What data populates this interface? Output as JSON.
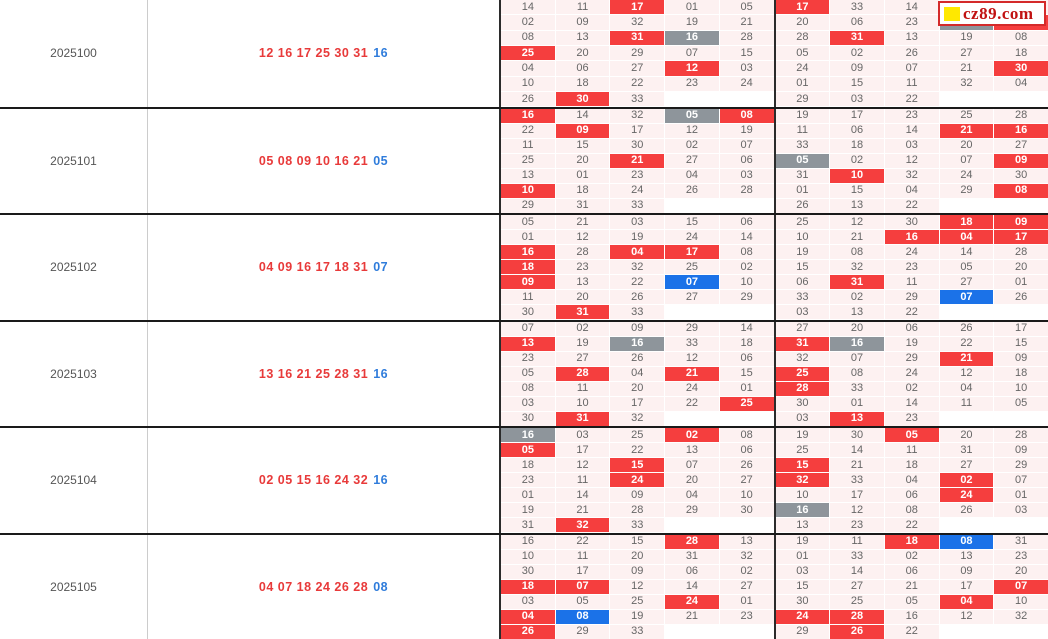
{
  "site": {
    "logo_text": "cz89.com",
    "logo_square_color": "#ffe800",
    "logo_text_color": "#c11212"
  },
  "colors": {
    "cell_bg": "#fdf1f1",
    "highlight_red": "#f53e3e",
    "highlight_gray": "#8e959b",
    "highlight_blue": "#1b72e8",
    "red_ball_text": "#e83a3a",
    "blue_ball_text": "#2f7cdb"
  },
  "legend": {
    "cell_format": "value:R = red highlight, value:G = gray highlight, value:B = blue highlight, ~ = covered cell, empty = blank cell"
  },
  "blocks": [
    {
      "period": "2025100",
      "red_balls": "12 16 17 25 30 31",
      "blue_ball": "16",
      "rows": [
        [
          "14",
          "11",
          "17:R",
          "01",
          "05",
          "17:R",
          "33",
          "14",
          "~",
          "~"
        ],
        [
          "02",
          "09",
          "32",
          "19",
          "21",
          "20",
          "06",
          "23",
          "16:G",
          "12:R"
        ],
        [
          "08",
          "13",
          "31:R",
          "16:G",
          "28",
          "28",
          "31:R",
          "13",
          "19",
          "08"
        ],
        [
          "25:R",
          "20",
          "29",
          "07",
          "15",
          "05",
          "02",
          "26",
          "27",
          "18"
        ],
        [
          "04",
          "06",
          "27",
          "12:R",
          "03",
          "24",
          "09",
          "07",
          "21",
          "30:R"
        ],
        [
          "10",
          "18",
          "22",
          "23",
          "24",
          "01",
          "15",
          "11",
          "32",
          "04"
        ],
        [
          "26",
          "30:R",
          "33",
          "",
          "",
          "29",
          "03",
          "22",
          "",
          ""
        ]
      ]
    },
    {
      "period": "2025101",
      "red_balls": "05 08 09 10 16 21",
      "blue_ball": "05",
      "rows": [
        [
          "16:R",
          "14",
          "32",
          "05:G",
          "08:R",
          "19",
          "17",
          "23",
          "25",
          "28"
        ],
        [
          "22",
          "09:R",
          "17",
          "12",
          "19",
          "11",
          "06",
          "14",
          "21:R",
          "16:R"
        ],
        [
          "11",
          "15",
          "30",
          "02",
          "07",
          "33",
          "18",
          "03",
          "20",
          "27"
        ],
        [
          "25",
          "20",
          "21:R",
          "27",
          "06",
          "05:G",
          "02",
          "12",
          "07",
          "09:R"
        ],
        [
          "13",
          "01",
          "23",
          "04",
          "03",
          "31",
          "10:R",
          "32",
          "24",
          "30"
        ],
        [
          "10:R",
          "18",
          "24",
          "26",
          "28",
          "01",
          "15",
          "04",
          "29",
          "08:R"
        ],
        [
          "29",
          "31",
          "33",
          "",
          "",
          "26",
          "13",
          "22",
          "",
          ""
        ]
      ]
    },
    {
      "period": "2025102",
      "red_balls": "04 09 16 17 18 31",
      "blue_ball": "07",
      "rows": [
        [
          "05",
          "21",
          "03",
          "15",
          "06",
          "25",
          "12",
          "30",
          "18:R",
          "09:R"
        ],
        [
          "01",
          "12",
          "19",
          "24",
          "14",
          "10",
          "21",
          "16:R",
          "04:R",
          "17:R"
        ],
        [
          "16:R",
          "28",
          "04:R",
          "17:R",
          "08",
          "19",
          "08",
          "24",
          "14",
          "28"
        ],
        [
          "18:R",
          "23",
          "32",
          "25",
          "02",
          "15",
          "32",
          "23",
          "05",
          "20"
        ],
        [
          "09:R",
          "13",
          "22",
          "07:B",
          "10",
          "06",
          "31:R",
          "11",
          "27",
          "01"
        ],
        [
          "11",
          "20",
          "26",
          "27",
          "29",
          "33",
          "02",
          "29",
          "07:B",
          "26"
        ],
        [
          "30",
          "31:R",
          "33",
          "",
          "",
          "03",
          "13",
          "22",
          "",
          ""
        ]
      ]
    },
    {
      "period": "2025103",
      "red_balls": "13 16 21 25 28 31",
      "blue_ball": "16",
      "rows": [
        [
          "07",
          "02",
          "09",
          "29",
          "14",
          "27",
          "20",
          "06",
          "26",
          "17"
        ],
        [
          "13:R",
          "19",
          "16:G",
          "33",
          "18",
          "31:R",
          "16:G",
          "19",
          "22",
          "15"
        ],
        [
          "23",
          "27",
          "26",
          "12",
          "06",
          "32",
          "07",
          "29",
          "21:R",
          "09"
        ],
        [
          "05",
          "28:R",
          "04",
          "21:R",
          "15",
          "25:R",
          "08",
          "24",
          "12",
          "18"
        ],
        [
          "08",
          "11",
          "20",
          "24",
          "01",
          "28:R",
          "33",
          "02",
          "04",
          "10"
        ],
        [
          "03",
          "10",
          "17",
          "22",
          "25:R",
          "30",
          "01",
          "14",
          "11",
          "05"
        ],
        [
          "30",
          "31:R",
          "32",
          "",
          "",
          "03",
          "13:R",
          "23",
          "",
          ""
        ]
      ]
    },
    {
      "period": "2025104",
      "red_balls": "02 05 15 16 24 32",
      "blue_ball": "16",
      "rows": [
        [
          "16:G",
          "03",
          "25",
          "02:R",
          "08",
          "19",
          "30",
          "05:R",
          "20",
          "28"
        ],
        [
          "05:R",
          "17",
          "22",
          "13",
          "06",
          "25",
          "14",
          "11",
          "31",
          "09"
        ],
        [
          "18",
          "12",
          "15:R",
          "07",
          "26",
          "15:R",
          "21",
          "18",
          "27",
          "29"
        ],
        [
          "23",
          "11",
          "24:R",
          "20",
          "27",
          "32:R",
          "33",
          "04",
          "02:R",
          "07"
        ],
        [
          "01",
          "14",
          "09",
          "04",
          "10",
          "10",
          "17",
          "06",
          "24:R",
          "01"
        ],
        [
          "19",
          "21",
          "28",
          "29",
          "30",
          "16:G",
          "12",
          "08",
          "26",
          "03"
        ],
        [
          "31",
          "32:R",
          "33",
          "",
          "",
          "13",
          "23",
          "22",
          "",
          ""
        ]
      ]
    },
    {
      "period": "2025105",
      "red_balls": "04 07 18 24 26 28",
      "blue_ball": "08",
      "rows": [
        [
          "16",
          "22",
          "15",
          "28:R",
          "13",
          "19",
          "11",
          "18:R",
          "08:B",
          "31"
        ],
        [
          "10",
          "11",
          "20",
          "31",
          "32",
          "01",
          "33",
          "02",
          "13",
          "23"
        ],
        [
          "30",
          "17",
          "09",
          "06",
          "02",
          "03",
          "14",
          "06",
          "09",
          "20"
        ],
        [
          "18:R",
          "07:R",
          "12",
          "14",
          "27",
          "15",
          "27",
          "21",
          "17",
          "07:R"
        ],
        [
          "03",
          "05",
          "25",
          "24:R",
          "01",
          "30",
          "25",
          "05",
          "04:R",
          "10"
        ],
        [
          "04:R",
          "08:B",
          "19",
          "21",
          "23",
          "24:R",
          "28:R",
          "16",
          "12",
          "32"
        ],
        [
          "26:R",
          "29",
          "33",
          "",
          "",
          "29",
          "26:R",
          "22",
          "",
          ""
        ]
      ]
    }
  ]
}
